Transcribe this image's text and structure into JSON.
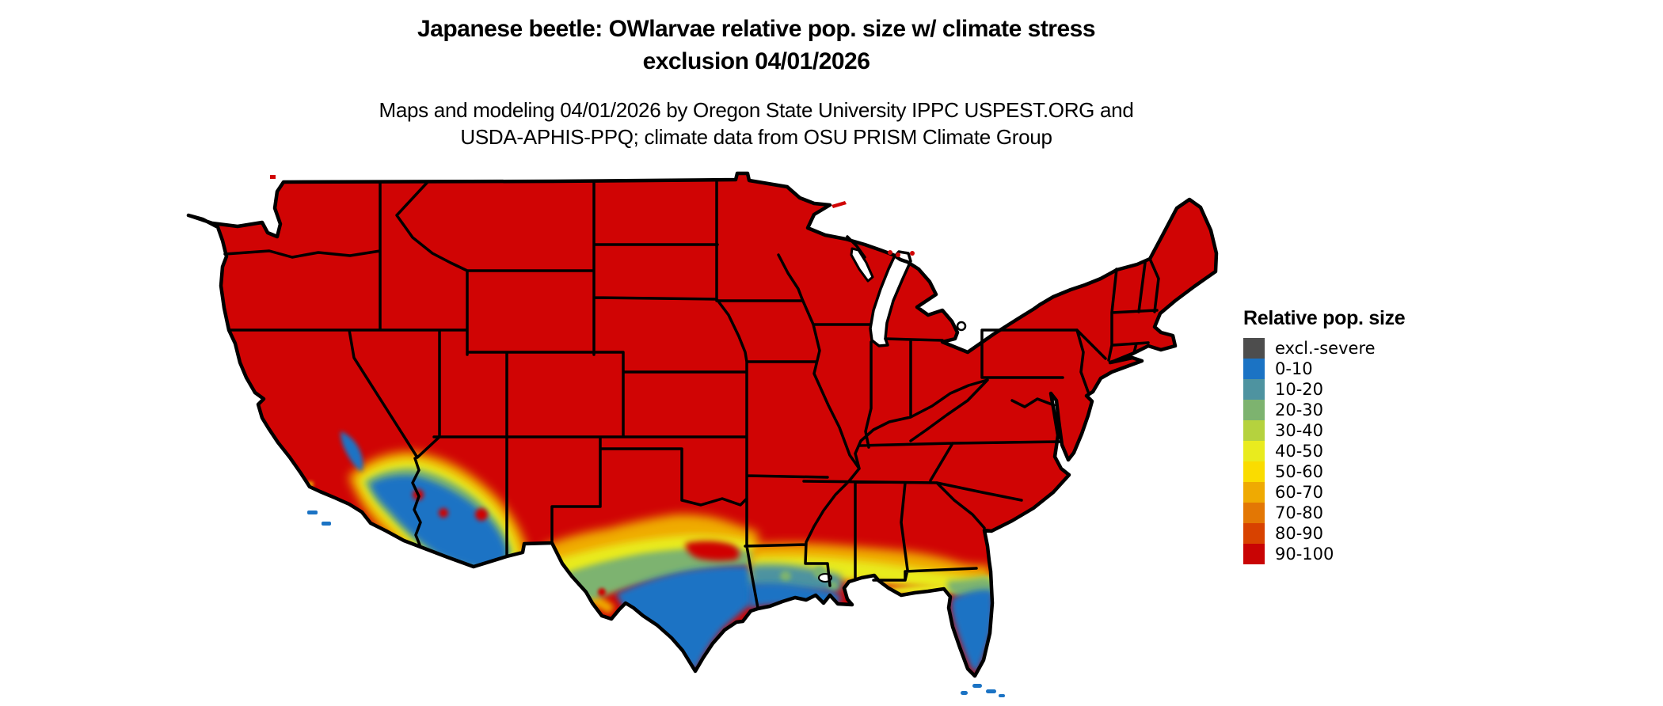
{
  "title": {
    "line1": "Japanese beetle: OWlarvae relative pop. size w/ climate stress",
    "line2": "exclusion 04/01/2026"
  },
  "subtitle": {
    "line1": "Maps and modeling 04/01/2026 by Oregon State University IPPC USPEST.ORG and",
    "line2": "USDA-APHIS-PPQ; climate data from OSU PRISM Climate Group"
  },
  "legend": {
    "title": "Relative pop. size",
    "entries": [
      {
        "label": "excl.-severe",
        "color": "#4d4d4d"
      },
      {
        "label": "0-10",
        "color": "#1b73c4"
      },
      {
        "label": "10-20",
        "color": "#4e93a0"
      },
      {
        "label": "20-30",
        "color": "#7db36f"
      },
      {
        "label": "30-40",
        "color": "#b5d23e"
      },
      {
        "label": "40-50",
        "color": "#e9eb1e"
      },
      {
        "label": "50-60",
        "color": "#fadc00"
      },
      {
        "label": "60-70",
        "color": "#efaa02"
      },
      {
        "label": "70-80",
        "color": "#e37704"
      },
      {
        "label": "80-90",
        "color": "#d84200"
      },
      {
        "label": "90-100",
        "color": "#c90404"
      }
    ]
  },
  "map": {
    "region": "Continental United States",
    "dominant_class": "90-100",
    "low_population_areas": [
      "southern Texas and Rio Grande valley",
      "Gulf Coast of Louisiana and Mississippi",
      "Florida peninsula and Keys",
      "southern California deserts",
      "southwestern Arizona"
    ],
    "colors": {
      "land_base": "#d00404",
      "state_border": "#000000",
      "water_background": "#ffffff"
    }
  }
}
